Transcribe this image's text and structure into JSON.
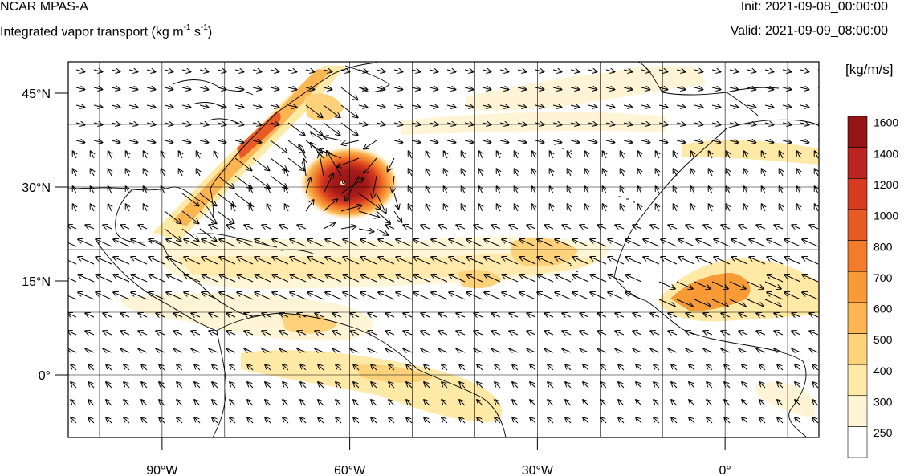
{
  "header": {
    "model": "NCAR MPAS-A",
    "field_prefix": "Integrated vapor transport (kg m",
    "field_exp1": "-1",
    "field_mid": " s",
    "field_exp2": "-1",
    "field_suffix": ")",
    "init": "Init: 2021-09-08_00:00:00",
    "valid": "Valid: 2021-09-09_08:00:00"
  },
  "map": {
    "projection": "cylindrical",
    "lon_range": [
      -105,
      15
    ],
    "lat_range": [
      -10,
      50
    ],
    "lat_ticks": [
      {
        "value": 45,
        "label": "45°N"
      },
      {
        "value": 30,
        "label": "30°N"
      },
      {
        "value": 15,
        "label": "15°N"
      },
      {
        "value": 0,
        "label": "0°"
      }
    ],
    "lon_ticks": [
      {
        "value": -90,
        "label": "90°W"
      },
      {
        "value": -60,
        "label": "60°W"
      },
      {
        "value": -30,
        "label": "30°W"
      },
      {
        "value": 0,
        "label": "0°"
      }
    ],
    "grid_lines": true,
    "features": [
      {
        "name": "hurricane-larry-ivt-core",
        "lon": -60,
        "lat": 31,
        "ivt_max": 1700
      }
    ]
  },
  "colorbar": {
    "unit": "[kg/m/s]",
    "levels": [
      250,
      300,
      400,
      500,
      600,
      700,
      800,
      1000,
      1200,
      1400,
      1600
    ],
    "colors": [
      "#ffffff",
      "#fff5d6",
      "#ffe9a6",
      "#fdd27a",
      "#fbb652",
      "#f89a35",
      "#f37b2a",
      "#e85b24",
      "#d63b20",
      "#bb2420",
      "#951516"
    ]
  }
}
